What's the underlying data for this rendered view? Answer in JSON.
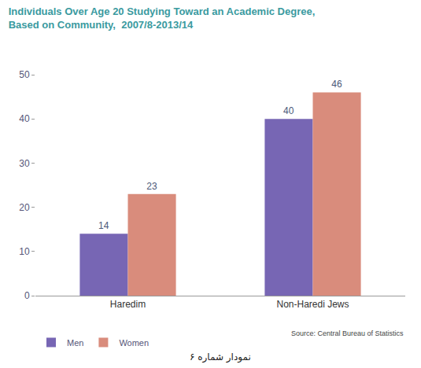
{
  "chart_data": {
    "type": "bar",
    "title": "Individuals Over Age 20 Studying Toward an Academic Degree, Based on Community,  2007/8-2013/14",
    "categories": [
      "Haredim",
      "Non-Haredi Jews"
    ],
    "series": [
      {
        "name": "Men",
        "color": "#7766b4",
        "values": [
          14,
          40
        ]
      },
      {
        "name": "Women",
        "color": "#d98c7c",
        "values": [
          23,
          46
        ]
      }
    ],
    "ylim": [
      0,
      50
    ],
    "yticks": [
      0,
      10,
      20,
      30,
      40,
      50
    ],
    "grid": false,
    "legend": "bottom-left",
    "data_labels": true,
    "annotations": [
      "Source: Central Bureau of Statistics",
      "نمودار شماره ۶"
    ]
  }
}
